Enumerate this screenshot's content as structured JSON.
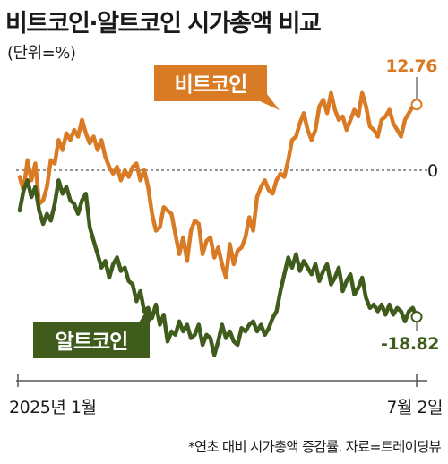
{
  "chart_data": {
    "type": "line",
    "title": "비트코인·알트코인 시가총액 비교",
    "subtitle": "(단위=%)",
    "footnote": "*연초 대비 시가총액 증감률. 자료=트레이딩뷰",
    "x_tick_labels": [
      "2025년 1월",
      "7월 2일"
    ],
    "y_reference": 0,
    "y_reference_label": "0",
    "ylim": [
      -27,
      19
    ],
    "colors": {
      "bitcoin": "#d97a24",
      "altcoin": "#3f5c1c",
      "zero_line": "#555555"
    },
    "series": [
      {
        "name": "비트코인",
        "end_label": "12.76",
        "values": [
          2.0,
          0.0,
          4.5,
          1.5,
          4.0,
          -2.0,
          -1.5,
          0.5,
          4.5,
          4.0,
          7.5,
          6.0,
          8.5,
          7.5,
          9.0,
          8.0,
          10.5,
          8.5,
          7.0,
          8.0,
          6.0,
          7.5,
          5.0,
          3.5,
          2.5,
          3.5,
          1.5,
          3.0,
          2.0,
          3.5,
          4.0,
          1.5,
          3.0,
          0.5,
          -3.5,
          -6.0,
          -5.5,
          -2.5,
          -3.0,
          -3.5,
          -6.5,
          -9.5,
          -7.0,
          -10.5,
          -6.0,
          -4.5,
          -5.0,
          -9.5,
          -7.5,
          -7.0,
          -10.0,
          -8.5,
          -11.0,
          -13.0,
          -8.0,
          -11.0,
          -9.0,
          -8.5,
          -7.0,
          -4.0,
          -6.0,
          -1.0,
          0.5,
          1.5,
          0.0,
          -0.5,
          1.5,
          2.5,
          2.0,
          4.5,
          7.5,
          8.0,
          10.0,
          11.5,
          9.0,
          7.5,
          9.0,
          12.5,
          13.5,
          11.5,
          14.5,
          12.0,
          10.5,
          11.0,
          9.0,
          10.5,
          12.0,
          11.0,
          14.5,
          12.5,
          9.5,
          9.0,
          8.0,
          10.5,
          11.0,
          12.0,
          10.0,
          9.0,
          8.0,
          10.5,
          11.5,
          12.5,
          12.76
        ]
      },
      {
        "name": "알트코인",
        "end_label": "-18.82",
        "values": [
          -3.0,
          0.0,
          1.5,
          -1.0,
          0.5,
          -3.0,
          -5.0,
          -3.5,
          -4.5,
          -2.0,
          1.5,
          -0.5,
          0.5,
          -1.5,
          -2.0,
          -3.5,
          -1.5,
          -0.5,
          -5.5,
          -7.5,
          -9.5,
          -11.5,
          -10.5,
          -13.0,
          -11.0,
          -10.0,
          -12.0,
          -11.5,
          -13.5,
          -14.0,
          -16.5,
          -15.0,
          -18.0,
          -17.5,
          -19.0,
          -17.0,
          -20.0,
          -18.5,
          -22.5,
          -21.0,
          -21.5,
          -19.5,
          -21.0,
          -20.0,
          -22.0,
          -21.5,
          -20.0,
          -23.0,
          -21.5,
          -22.0,
          -24.5,
          -22.5,
          -20.0,
          -22.0,
          -21.0,
          -22.5,
          -23.0,
          -20.5,
          -21.0,
          -20.0,
          -19.5,
          -21.0,
          -20.0,
          -21.5,
          -20.5,
          -19.0,
          -18.0,
          -15.0,
          -12.5,
          -10.0,
          -11.5,
          -9.5,
          -12.0,
          -10.5,
          -11.5,
          -12.5,
          -11.0,
          -13.5,
          -12.0,
          -11.0,
          -14.0,
          -13.0,
          -11.5,
          -15.0,
          -13.5,
          -12.5,
          -15.5,
          -14.5,
          -13.0,
          -16.0,
          -17.5,
          -17.0,
          -18.0,
          -17.0,
          -18.5,
          -17.0,
          -18.5,
          -17.5,
          -18.0,
          -19.5,
          -18.0,
          -17.5,
          -18.82
        ]
      }
    ]
  }
}
